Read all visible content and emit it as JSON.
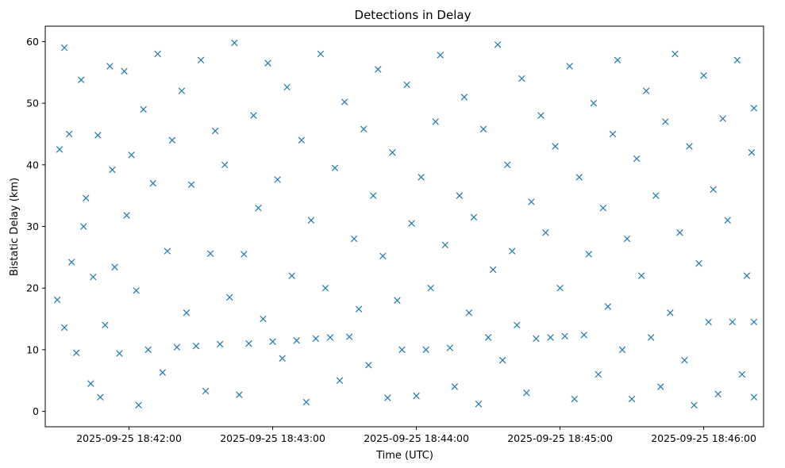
{
  "chart_data": {
    "type": "scatter",
    "title": "Detections in Delay",
    "xlabel": "Time (UTC)",
    "ylabel": "Bistatic Delay (km)",
    "x_ticks": [
      "2025-09-25 18:42:00",
      "2025-09-25 18:43:00",
      "2025-09-25 18:44:00",
      "2025-09-25 18:45:00",
      "2025-09-25 18:46:00"
    ],
    "y_ticks": [
      0,
      10,
      20,
      30,
      40,
      50,
      60
    ],
    "xlim": [
      "2025-09-25 18:41:25",
      "2025-09-25 18:46:25"
    ],
    "ylim": [
      -2.5,
      62.5
    ],
    "marker": "x",
    "color": "#1f77b4",
    "grid": false,
    "series": [
      {
        "points": [
          [
            "2025-09-25 18:41:30",
            18.1
          ],
          [
            "2025-09-25 18:41:31",
            42.5
          ],
          [
            "2025-09-25 18:41:33",
            59.0
          ],
          [
            "2025-09-25 18:41:33",
            13.6
          ],
          [
            "2025-09-25 18:41:35",
            45.0
          ],
          [
            "2025-09-25 18:41:36",
            24.2
          ],
          [
            "2025-09-25 18:41:38",
            9.5
          ],
          [
            "2025-09-25 18:41:40",
            53.8
          ],
          [
            "2025-09-25 18:41:41",
            30.0
          ],
          [
            "2025-09-25 18:41:42",
            34.6
          ],
          [
            "2025-09-25 18:41:44",
            4.5
          ],
          [
            "2025-09-25 18:41:45",
            21.8
          ],
          [
            "2025-09-25 18:41:47",
            44.8
          ],
          [
            "2025-09-25 18:41:48",
            2.3
          ],
          [
            "2025-09-25 18:41:50",
            14.0
          ],
          [
            "2025-09-25 18:41:52",
            56.0
          ],
          [
            "2025-09-25 18:41:53",
            39.2
          ],
          [
            "2025-09-25 18:41:54",
            23.4
          ],
          [
            "2025-09-25 18:41:56",
            9.4
          ],
          [
            "2025-09-25 18:41:58",
            55.2
          ],
          [
            "2025-09-25 18:41:59",
            31.8
          ],
          [
            "2025-09-25 18:42:01",
            41.6
          ],
          [
            "2025-09-25 18:42:03",
            19.6
          ],
          [
            "2025-09-25 18:42:04",
            1.0
          ],
          [
            "2025-09-25 18:42:06",
            49.0
          ],
          [
            "2025-09-25 18:42:08",
            10.0
          ],
          [
            "2025-09-25 18:42:10",
            37.0
          ],
          [
            "2025-09-25 18:42:12",
            58.0
          ],
          [
            "2025-09-25 18:42:14",
            6.3
          ],
          [
            "2025-09-25 18:42:16",
            26.0
          ],
          [
            "2025-09-25 18:42:18",
            44.0
          ],
          [
            "2025-09-25 18:42:20",
            10.4
          ],
          [
            "2025-09-25 18:42:22",
            52.0
          ],
          [
            "2025-09-25 18:42:24",
            16.0
          ],
          [
            "2025-09-25 18:42:26",
            36.8
          ],
          [
            "2025-09-25 18:42:28",
            10.6
          ],
          [
            "2025-09-25 18:42:30",
            57.0
          ],
          [
            "2025-09-25 18:42:32",
            3.3
          ],
          [
            "2025-09-25 18:42:34",
            25.6
          ],
          [
            "2025-09-25 18:42:36",
            45.5
          ],
          [
            "2025-09-25 18:42:38",
            10.9
          ],
          [
            "2025-09-25 18:42:40",
            40.0
          ],
          [
            "2025-09-25 18:42:42",
            18.5
          ],
          [
            "2025-09-25 18:42:44",
            59.8
          ],
          [
            "2025-09-25 18:42:46",
            2.7
          ],
          [
            "2025-09-25 18:42:48",
            25.5
          ],
          [
            "2025-09-25 18:42:50",
            11.0
          ],
          [
            "2025-09-25 18:42:52",
            48.0
          ],
          [
            "2025-09-25 18:42:54",
            33.0
          ],
          [
            "2025-09-25 18:42:56",
            15.0
          ],
          [
            "2025-09-25 18:42:58",
            56.5
          ],
          [
            "2025-09-25 18:43:00",
            11.3
          ],
          [
            "2025-09-25 18:43:02",
            37.6
          ],
          [
            "2025-09-25 18:43:04",
            8.6
          ],
          [
            "2025-09-25 18:43:06",
            52.6
          ],
          [
            "2025-09-25 18:43:08",
            22.0
          ],
          [
            "2025-09-25 18:43:10",
            11.5
          ],
          [
            "2025-09-25 18:43:12",
            44.0
          ],
          [
            "2025-09-25 18:43:14",
            1.5
          ],
          [
            "2025-09-25 18:43:16",
            31.0
          ],
          [
            "2025-09-25 18:43:18",
            11.8
          ],
          [
            "2025-09-25 18:43:20",
            58.0
          ],
          [
            "2025-09-25 18:43:22",
            20.0
          ],
          [
            "2025-09-25 18:43:24",
            12.0
          ],
          [
            "2025-09-25 18:43:26",
            39.5
          ],
          [
            "2025-09-25 18:43:28",
            5.0
          ],
          [
            "2025-09-25 18:43:30",
            50.2
          ],
          [
            "2025-09-25 18:43:32",
            12.1
          ],
          [
            "2025-09-25 18:43:34",
            28.0
          ],
          [
            "2025-09-25 18:43:36",
            16.6
          ],
          [
            "2025-09-25 18:43:38",
            45.8
          ],
          [
            "2025-09-25 18:43:40",
            7.5
          ],
          [
            "2025-09-25 18:43:42",
            35.0
          ],
          [
            "2025-09-25 18:43:44",
            55.5
          ],
          [
            "2025-09-25 18:43:46",
            25.2
          ],
          [
            "2025-09-25 18:43:48",
            2.2
          ],
          [
            "2025-09-25 18:43:50",
            42.0
          ],
          [
            "2025-09-25 18:43:52",
            18.0
          ],
          [
            "2025-09-25 18:43:54",
            10.0
          ],
          [
            "2025-09-25 18:43:56",
            53.0
          ],
          [
            "2025-09-25 18:43:58",
            30.5
          ],
          [
            "2025-09-25 18:44:00",
            2.5
          ],
          [
            "2025-09-25 18:44:02",
            38.0
          ],
          [
            "2025-09-25 18:44:04",
            10.0
          ],
          [
            "2025-09-25 18:44:06",
            20.0
          ],
          [
            "2025-09-25 18:44:08",
            47.0
          ],
          [
            "2025-09-25 18:44:10",
            57.8
          ],
          [
            "2025-09-25 18:44:12",
            27.0
          ],
          [
            "2025-09-25 18:44:14",
            10.3
          ],
          [
            "2025-09-25 18:44:16",
            4.0
          ],
          [
            "2025-09-25 18:44:18",
            35.0
          ],
          [
            "2025-09-25 18:44:20",
            51.0
          ],
          [
            "2025-09-25 18:44:22",
            16.0
          ],
          [
            "2025-09-25 18:44:24",
            31.5
          ],
          [
            "2025-09-25 18:44:26",
            1.2
          ],
          [
            "2025-09-25 18:44:28",
            45.8
          ],
          [
            "2025-09-25 18:44:30",
            12.0
          ],
          [
            "2025-09-25 18:44:32",
            23.0
          ],
          [
            "2025-09-25 18:44:34",
            59.5
          ],
          [
            "2025-09-25 18:44:36",
            8.3
          ],
          [
            "2025-09-25 18:44:38",
            40.0
          ],
          [
            "2025-09-25 18:44:40",
            26.0
          ],
          [
            "2025-09-25 18:44:42",
            14.0
          ],
          [
            "2025-09-25 18:44:44",
            54.0
          ],
          [
            "2025-09-25 18:44:46",
            3.0
          ],
          [
            "2025-09-25 18:44:48",
            34.0
          ],
          [
            "2025-09-25 18:44:50",
            11.8
          ],
          [
            "2025-09-25 18:44:52",
            48.0
          ],
          [
            "2025-09-25 18:44:54",
            29.0
          ],
          [
            "2025-09-25 18:44:56",
            12.0
          ],
          [
            "2025-09-25 18:44:58",
            43.0
          ],
          [
            "2025-09-25 18:45:00",
            20.0
          ],
          [
            "2025-09-25 18:45:02",
            12.2
          ],
          [
            "2025-09-25 18:45:04",
            56.0
          ],
          [
            "2025-09-25 18:45:06",
            2.0
          ],
          [
            "2025-09-25 18:45:08",
            38.0
          ],
          [
            "2025-09-25 18:45:10",
            12.4
          ],
          [
            "2025-09-25 18:45:12",
            25.5
          ],
          [
            "2025-09-25 18:45:14",
            50.0
          ],
          [
            "2025-09-25 18:45:16",
            6.0
          ],
          [
            "2025-09-25 18:45:18",
            33.0
          ],
          [
            "2025-09-25 18:45:20",
            17.0
          ],
          [
            "2025-09-25 18:45:22",
            45.0
          ],
          [
            "2025-09-25 18:45:24",
            57.0
          ],
          [
            "2025-09-25 18:45:26",
            10.0
          ],
          [
            "2025-09-25 18:45:28",
            28.0
          ],
          [
            "2025-09-25 18:45:30",
            2.0
          ],
          [
            "2025-09-25 18:45:32",
            41.0
          ],
          [
            "2025-09-25 18:45:34",
            22.0
          ],
          [
            "2025-09-25 18:45:36",
            52.0
          ],
          [
            "2025-09-25 18:45:38",
            12.0
          ],
          [
            "2025-09-25 18:45:40",
            35.0
          ],
          [
            "2025-09-25 18:45:42",
            4.0
          ],
          [
            "2025-09-25 18:45:44",
            47.0
          ],
          [
            "2025-09-25 18:45:46",
            16.0
          ],
          [
            "2025-09-25 18:45:48",
            58.0
          ],
          [
            "2025-09-25 18:45:50",
            29.0
          ],
          [
            "2025-09-25 18:45:52",
            8.3
          ],
          [
            "2025-09-25 18:45:54",
            43.0
          ],
          [
            "2025-09-25 18:45:56",
            1.0
          ],
          [
            "2025-09-25 18:45:58",
            24.0
          ],
          [
            "2025-09-25 18:46:00",
            54.5
          ],
          [
            "2025-09-25 18:46:02",
            14.5
          ],
          [
            "2025-09-25 18:46:04",
            36.0
          ],
          [
            "2025-09-25 18:46:06",
            2.8
          ],
          [
            "2025-09-25 18:46:08",
            47.5
          ],
          [
            "2025-09-25 18:46:10",
            31.0
          ],
          [
            "2025-09-25 18:46:12",
            14.5
          ],
          [
            "2025-09-25 18:46:14",
            57.0
          ],
          [
            "2025-09-25 18:46:16",
            6.0
          ],
          [
            "2025-09-25 18:46:18",
            22.0
          ],
          [
            "2025-09-25 18:46:20",
            42.0
          ],
          [
            "2025-09-25 18:46:21",
            14.5
          ],
          [
            "2025-09-25 18:46:21",
            49.2
          ],
          [
            "2025-09-25 18:46:21",
            2.3
          ]
        ]
      }
    ]
  }
}
